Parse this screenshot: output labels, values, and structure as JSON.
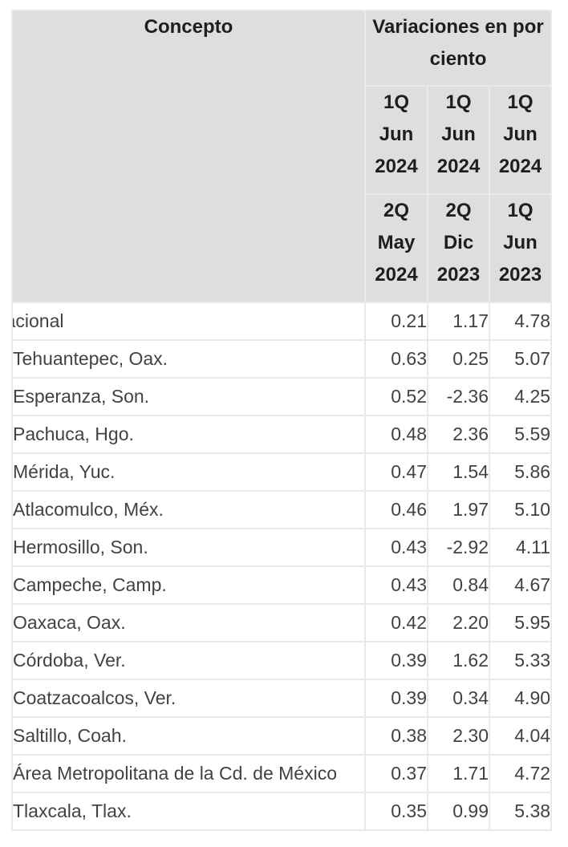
{
  "table": {
    "header": {
      "concepto": "Concepto",
      "variaciones": "Variaciones en por ciento",
      "periods_row1": [
        {
          "line1": "1Q",
          "line2": "Jun",
          "line3": "2024"
        },
        {
          "line1": "1Q",
          "line2": "Jun",
          "line3": "2024"
        },
        {
          "line1": "1Q",
          "line2": "Jun",
          "line3": "2024"
        }
      ],
      "periods_row2": [
        {
          "line1": "2Q",
          "line2": "May",
          "line3": "2024"
        },
        {
          "line1": "2Q",
          "line2": "Dic",
          "line3": "2023"
        },
        {
          "line1": "1Q",
          "line2": "Jun",
          "line3": "2023"
        }
      ]
    },
    "rows": [
      {
        "name": "Nacional",
        "v1": "0.21",
        "v2": "1.17",
        "v3": "4.78"
      },
      {
        "name": "Tehuantepec, Oax.",
        "v1": "0.63",
        "v2": "0.25",
        "v3": "5.07"
      },
      {
        "name": "Esperanza, Son.",
        "v1": "0.52",
        "v2": "-2.36",
        "v3": "4.25"
      },
      {
        "name": "Pachuca, Hgo.",
        "v1": "0.48",
        "v2": "2.36",
        "v3": "5.59"
      },
      {
        "name": "Mérida, Yuc.",
        "v1": "0.47",
        "v2": "1.54",
        "v3": "5.86"
      },
      {
        "name": "Atlacomulco, Méx.",
        "v1": "0.46",
        "v2": "1.97",
        "v3": "5.10"
      },
      {
        "name": "Hermosillo, Son.",
        "v1": "0.43",
        "v2": "-2.92",
        "v3": "4.11"
      },
      {
        "name": "Campeche, Camp.",
        "v1": "0.43",
        "v2": "0.84",
        "v3": "4.67"
      },
      {
        "name": "Oaxaca, Oax.",
        "v1": "0.42",
        "v2": "2.20",
        "v3": "5.95"
      },
      {
        "name": "Córdoba, Ver.",
        "v1": "0.39",
        "v2": "1.62",
        "v3": "5.33"
      },
      {
        "name": "Coatzacoalcos, Ver.",
        "v1": "0.39",
        "v2": "0.34",
        "v3": "4.90"
      },
      {
        "name": "Saltillo, Coah.",
        "v1": "0.38",
        "v2": "2.30",
        "v3": "4.04"
      },
      {
        "name": "Área Metropolitana de la Cd. de México",
        "v1": "0.37",
        "v2": "1.71",
        "v3": "4.72"
      },
      {
        "name": "Tlaxcala, Tlax.",
        "v1": "0.35",
        "v2": "0.99",
        "v3": "5.38"
      }
    ]
  }
}
